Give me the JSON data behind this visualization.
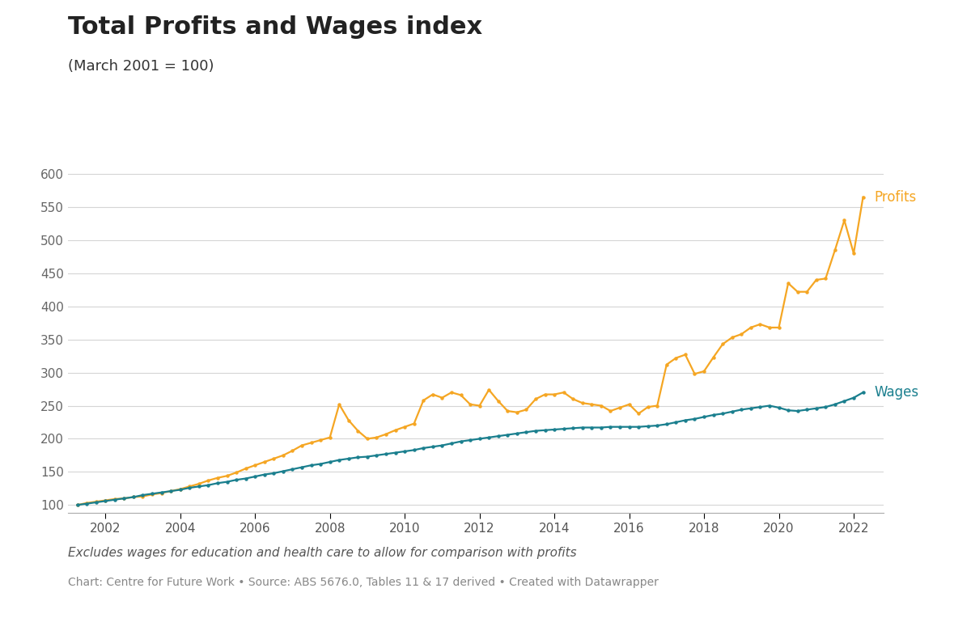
{
  "title": "Total Profits and Wages index",
  "subtitle": "(March 2001 = 100)",
  "footnote": "Excludes wages for education and health care to allow for comparison with profits",
  "source": "Chart: Centre for Future Work • Source: ABS 5676.0, Tables 11 & 17 derived • Created with Datawrapper",
  "profits_color": "#f5a623",
  "wages_color": "#1a7f8e",
  "background_color": "#ffffff",
  "ylim": [
    88,
    620
  ],
  "yticks": [
    100,
    150,
    200,
    250,
    300,
    350,
    400,
    450,
    500,
    550,
    600
  ],
  "profits_label": "Profits",
  "wages_label": "Wages",
  "profits_x": [
    2001.25,
    2001.5,
    2001.75,
    2002.0,
    2002.25,
    2002.5,
    2002.75,
    2003.0,
    2003.25,
    2003.5,
    2003.75,
    2004.0,
    2004.25,
    2004.5,
    2004.75,
    2005.0,
    2005.25,
    2005.5,
    2005.75,
    2006.0,
    2006.25,
    2006.5,
    2006.75,
    2007.0,
    2007.25,
    2007.5,
    2007.75,
    2008.0,
    2008.25,
    2008.5,
    2008.75,
    2009.0,
    2009.25,
    2009.5,
    2009.75,
    2010.0,
    2010.25,
    2010.5,
    2010.75,
    2011.0,
    2011.25,
    2011.5,
    2011.75,
    2012.0,
    2012.25,
    2012.5,
    2012.75,
    2013.0,
    2013.25,
    2013.5,
    2013.75,
    2014.0,
    2014.25,
    2014.5,
    2014.75,
    2015.0,
    2015.25,
    2015.5,
    2015.75,
    2016.0,
    2016.25,
    2016.5,
    2016.75,
    2017.0,
    2017.25,
    2017.5,
    2017.75,
    2018.0,
    2018.25,
    2018.5,
    2018.75,
    2019.0,
    2019.25,
    2019.5,
    2019.75,
    2020.0,
    2020.25,
    2020.5,
    2020.75,
    2021.0,
    2021.25,
    2021.5,
    2021.75,
    2022.0,
    2022.25
  ],
  "profits_y": [
    100,
    103,
    105,
    107,
    109,
    110,
    112,
    113,
    116,
    118,
    121,
    124,
    128,
    132,
    137,
    141,
    144,
    149,
    155,
    160,
    165,
    170,
    175,
    182,
    190,
    194,
    198,
    202,
    252,
    228,
    212,
    200,
    202,
    207,
    213,
    218,
    223,
    258,
    267,
    262,
    270,
    266,
    252,
    250,
    274,
    257,
    242,
    240,
    244,
    260,
    267,
    267,
    270,
    260,
    254,
    252,
    250,
    242,
    247,
    252,
    238,
    248,
    250,
    312,
    322,
    327,
    298,
    302,
    323,
    343,
    353,
    358,
    368,
    373,
    368,
    368,
    435,
    422,
    422,
    440,
    442,
    485,
    530,
    480,
    565
  ],
  "wages_x": [
    2001.25,
    2001.5,
    2001.75,
    2002.0,
    2002.25,
    2002.5,
    2002.75,
    2003.0,
    2003.25,
    2003.5,
    2003.75,
    2004.0,
    2004.25,
    2004.5,
    2004.75,
    2005.0,
    2005.25,
    2005.5,
    2005.75,
    2006.0,
    2006.25,
    2006.5,
    2006.75,
    2007.0,
    2007.25,
    2007.5,
    2007.75,
    2008.0,
    2008.25,
    2008.5,
    2008.75,
    2009.0,
    2009.25,
    2009.5,
    2009.75,
    2010.0,
    2010.25,
    2010.5,
    2010.75,
    2011.0,
    2011.25,
    2011.5,
    2011.75,
    2012.0,
    2012.25,
    2012.5,
    2012.75,
    2013.0,
    2013.25,
    2013.5,
    2013.75,
    2014.0,
    2014.25,
    2014.5,
    2014.75,
    2015.0,
    2015.25,
    2015.5,
    2015.75,
    2016.0,
    2016.25,
    2016.5,
    2016.75,
    2017.0,
    2017.25,
    2017.5,
    2017.75,
    2018.0,
    2018.25,
    2018.5,
    2018.75,
    2019.0,
    2019.25,
    2019.5,
    2019.75,
    2020.0,
    2020.25,
    2020.5,
    2020.75,
    2021.0,
    2021.25,
    2021.5,
    2021.75,
    2022.0,
    2022.25
  ],
  "wages_y": [
    100,
    102,
    104,
    106,
    108,
    110,
    112,
    115,
    117,
    119,
    121,
    123,
    126,
    128,
    130,
    133,
    135,
    138,
    140,
    143,
    146,
    148,
    151,
    154,
    157,
    160,
    162,
    165,
    168,
    170,
    172,
    173,
    175,
    177,
    179,
    181,
    183,
    186,
    188,
    190,
    193,
    196,
    198,
    200,
    202,
    204,
    206,
    208,
    210,
    212,
    213,
    214,
    215,
    216,
    217,
    217,
    217,
    218,
    218,
    218,
    218,
    219,
    220,
    222,
    225,
    228,
    230,
    233,
    236,
    238,
    241,
    244,
    246,
    248,
    250,
    247,
    243,
    242,
    244,
    246,
    248,
    252,
    257,
    262,
    270
  ]
}
